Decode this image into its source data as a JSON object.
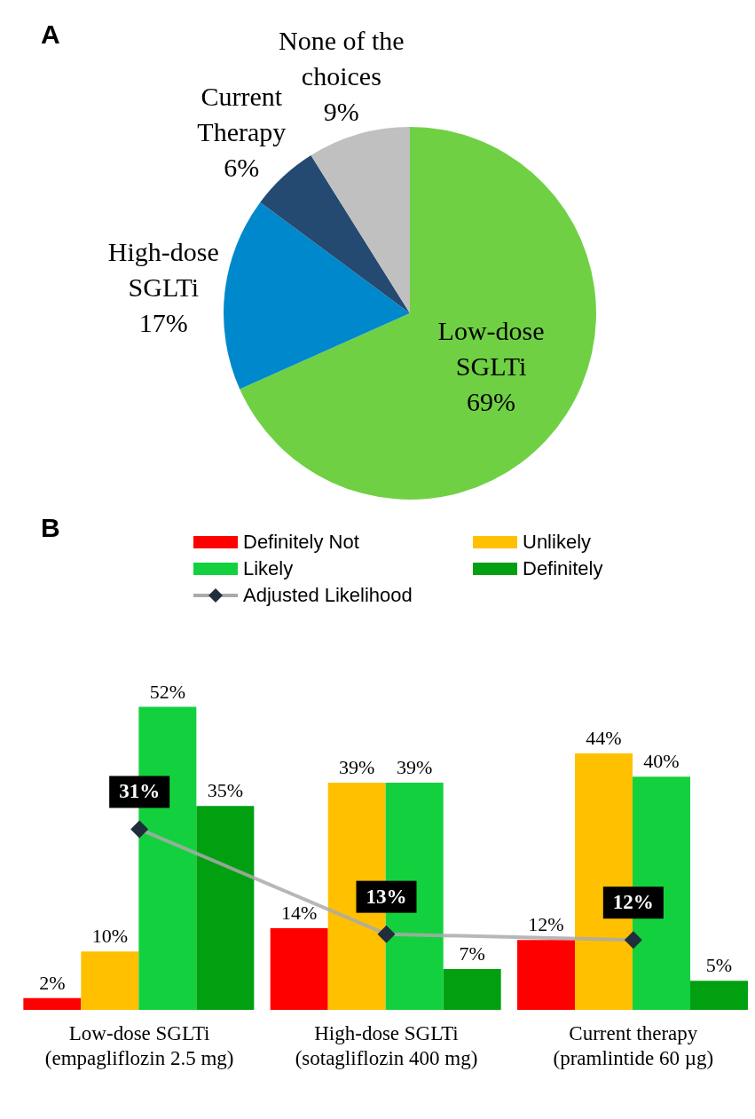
{
  "chart_data": [
    {
      "type": "pie",
      "title": "A",
      "categories": [
        "Low-dose SGLTi",
        "High-dose SGLTi",
        "Current Therapy",
        "None of the choices"
      ],
      "values": [
        69,
        17,
        6,
        9
      ],
      "colors": [
        "#70d044",
        "#0088cc",
        "#244a72",
        "#c0c0c0"
      ],
      "value_labels": [
        "69%",
        "17%",
        "6%",
        "9%"
      ],
      "legend": false
    },
    {
      "type": "bar",
      "title": "B",
      "categories": [
        "Low-dose SGLTi (empagliflozin 2.5 mg)",
        "High-dose SGLTi (sotagliflozin 400 mg)",
        "Current therapy (pramlintide 60 µg)"
      ],
      "legend": "top",
      "series": [
        {
          "name": "Definitely Not",
          "color": "#ff0000",
          "values": [
            2,
            14,
            12
          ],
          "value_labels": [
            "2%",
            "14%",
            "12%"
          ]
        },
        {
          "name": "Unlikely",
          "color": "#ffc000",
          "values": [
            10,
            39,
            44
          ],
          "value_labels": [
            "10%",
            "39%",
            "44%"
          ]
        },
        {
          "name": "Likely",
          "color": "#13d13e",
          "values": [
            52,
            39,
            40
          ],
          "value_labels": [
            "52%",
            "39%",
            "40%"
          ]
        },
        {
          "name": "Definitely",
          "color": "#00a010",
          "values": [
            35,
            7,
            5
          ],
          "value_labels": [
            "35%",
            "7%",
            "5%"
          ]
        },
        {
          "name": "Adjusted Likelihood",
          "type": "line",
          "color": "#aaaaaa",
          "marker": "diamond",
          "values": [
            31,
            13,
            12
          ],
          "value_labels": [
            "31%",
            "13%",
            "12%"
          ]
        }
      ]
    }
  ]
}
